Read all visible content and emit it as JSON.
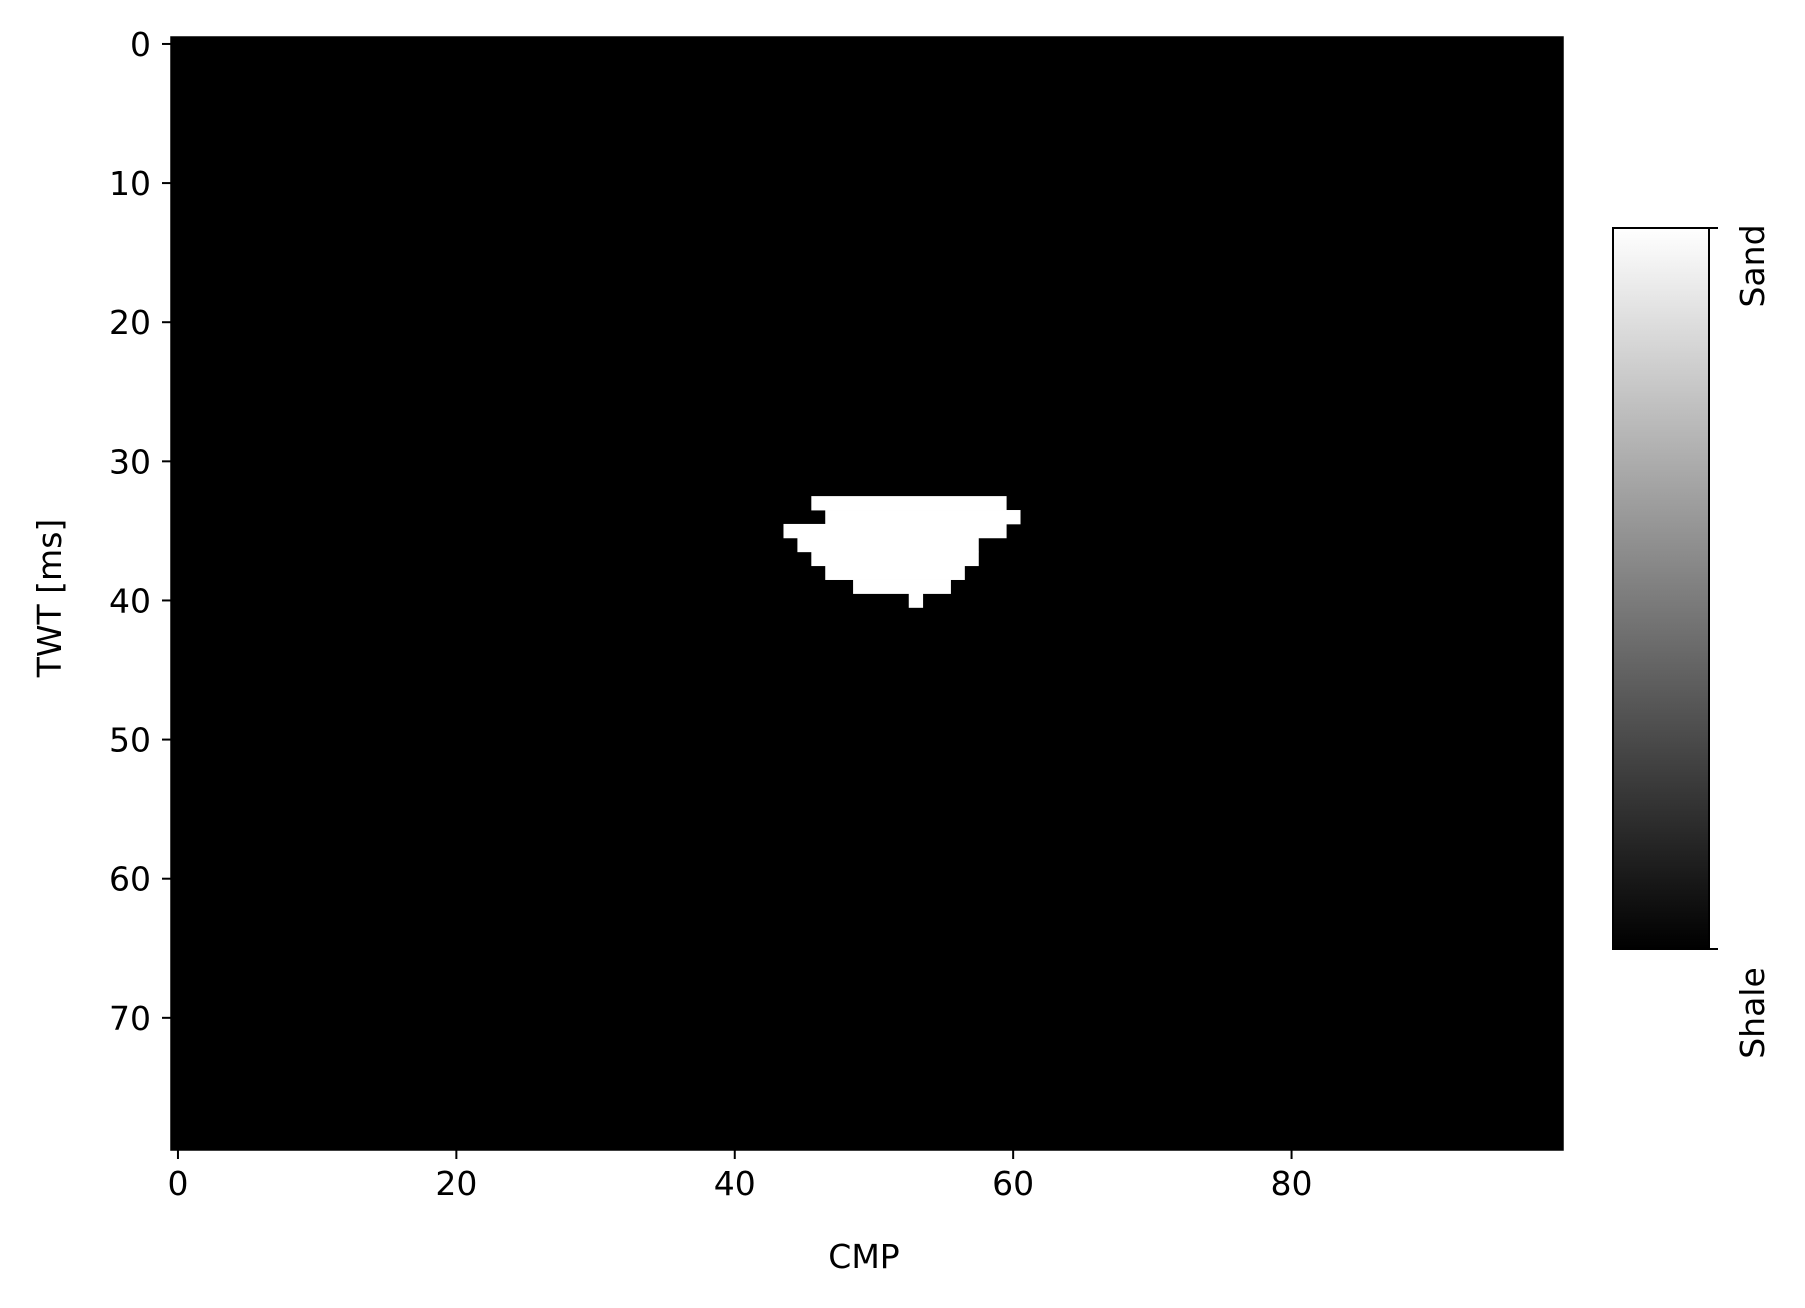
{
  "chart_data": {
    "type": "heatmap",
    "title": "",
    "xlabel": "CMP",
    "ylabel": "TWT [ms]",
    "xlim": [
      -0.5,
      99.5
    ],
    "ylim": [
      79.5,
      -0.5
    ],
    "x_ticks": [
      0,
      20,
      40,
      60,
      80
    ],
    "y_ticks": [
      0,
      10,
      20,
      30,
      40,
      50,
      60,
      70
    ],
    "colormap": "gray",
    "background_value": "Shale",
    "colors": {
      "Shale": "#000000",
      "Sand": "#ffffff"
    },
    "colorbar": {
      "position": "right",
      "tick_labels": [
        "Shale",
        "Sand"
      ]
    },
    "sand_rows": [
      {
        "twt": 33,
        "cmp": [
          46,
          59
        ]
      },
      {
        "twt": 34,
        "cmp": [
          47,
          60
        ]
      },
      {
        "twt": 35,
        "cmp": [
          44,
          59
        ]
      },
      {
        "twt": 36,
        "cmp": [
          45,
          57
        ]
      },
      {
        "twt": 37,
        "cmp": [
          46,
          57
        ]
      },
      {
        "twt": 38,
        "cmp": [
          47,
          56
        ]
      },
      {
        "twt": 39,
        "cmp": [
          49,
          55
        ]
      },
      {
        "twt": 40,
        "cmp": [
          53,
          53
        ]
      }
    ]
  }
}
